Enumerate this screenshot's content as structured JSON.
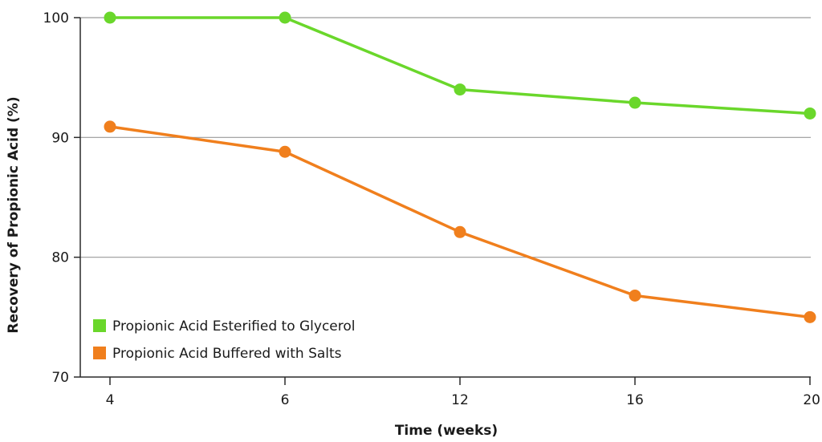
{
  "chart_data": {
    "type": "line",
    "title": "",
    "xlabel": "Time (weeks)",
    "ylabel": "Recovery of Propionic Acid (%)",
    "categories": [
      "4",
      "6",
      "12",
      "16",
      "20"
    ],
    "ylim": [
      70,
      100
    ],
    "yticks": [
      "70",
      "80",
      "90",
      "100"
    ],
    "grid": "horizontal",
    "legend_position": "bottom-left",
    "series": [
      {
        "name": "Propionic Acid Esterified to Glycerol",
        "color": "#6ad72b",
        "values": [
          100,
          100,
          94,
          92.9,
          92
        ]
      },
      {
        "name": "Propionic Acid Buffered with Salts",
        "color": "#f07f1d",
        "values": [
          90.9,
          88.8,
          82.1,
          76.8,
          75
        ]
      }
    ]
  }
}
